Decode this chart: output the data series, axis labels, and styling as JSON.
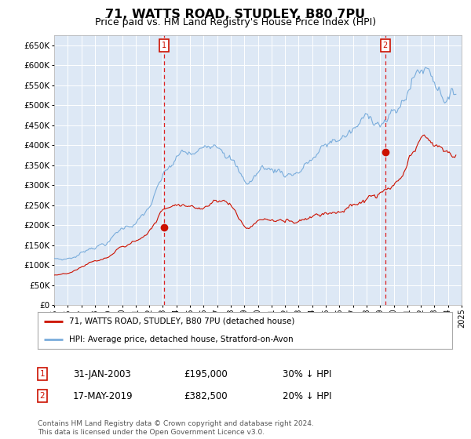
{
  "title": "71, WATTS ROAD, STUDLEY, B80 7PU",
  "subtitle": "Price paid vs. HM Land Registry's House Price Index (HPI)",
  "title_fontsize": 11.5,
  "subtitle_fontsize": 9,
  "background_color": "#ffffff",
  "plot_bg_color": "#dde8f5",
  "grid_color": "#ffffff",
  "ylim": [
    0,
    675000
  ],
  "yticks": [
    0,
    50000,
    100000,
    150000,
    200000,
    250000,
    300000,
    350000,
    400000,
    450000,
    500000,
    550000,
    600000,
    650000
  ],
  "ytick_labels": [
    "£0",
    "£50K",
    "£100K",
    "£150K",
    "£200K",
    "£250K",
    "£300K",
    "£350K",
    "£400K",
    "£450K",
    "£500K",
    "£550K",
    "£600K",
    "£650K"
  ],
  "hpi_color": "#7aaddc",
  "price_color": "#cc1100",
  "marker1_x": 2003.08,
  "marker1_y": 195000,
  "marker2_x": 2019.37,
  "marker2_y": 382500,
  "vline_color": "#dd2222",
  "legend_label_price": "71, WATTS ROAD, STUDLEY, B80 7PU (detached house)",
  "legend_label_hpi": "HPI: Average price, detached house, Stratford-on-Avon",
  "table_rows": [
    {
      "num": "1",
      "date": "31-JAN-2003",
      "price": "£195,000",
      "hpi": "30% ↓ HPI"
    },
    {
      "num": "2",
      "date": "17-MAY-2019",
      "price": "£382,500",
      "hpi": "20% ↓ HPI"
    }
  ],
  "footer": "Contains HM Land Registry data © Crown copyright and database right 2024.\nThis data is licensed under the Open Government Licence v3.0.",
  "xmin": 1995,
  "xmax": 2025,
  "xticks": [
    1995,
    1996,
    1997,
    1998,
    1999,
    2000,
    2001,
    2002,
    2003,
    2004,
    2005,
    2006,
    2007,
    2008,
    2009,
    2010,
    2011,
    2012,
    2013,
    2014,
    2015,
    2016,
    2017,
    2018,
    2019,
    2020,
    2021,
    2022,
    2023,
    2024,
    2025
  ]
}
